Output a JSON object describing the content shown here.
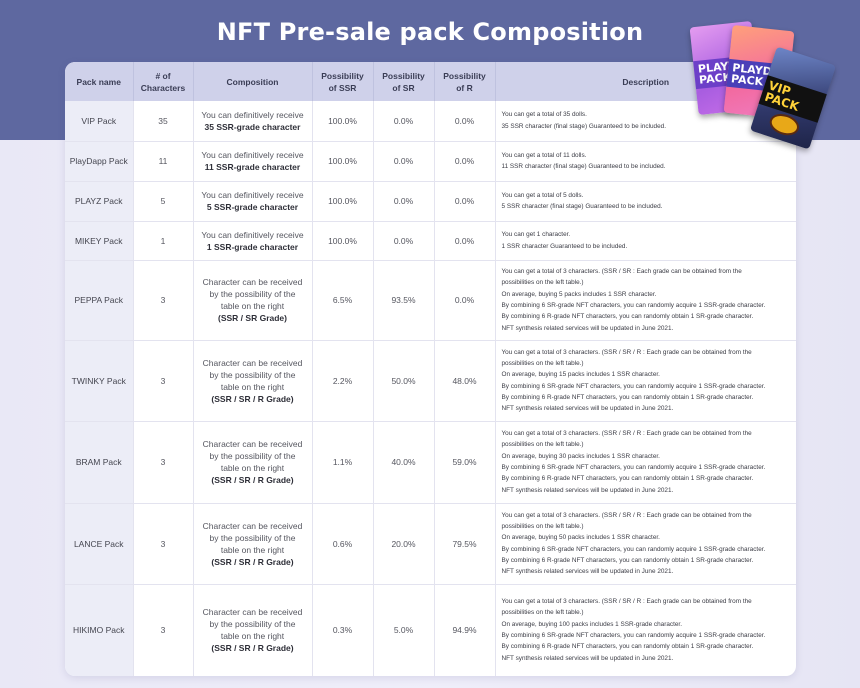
{
  "page": {
    "title": "NFT Pre-sale pack Composition"
  },
  "colors": {
    "banner": "#5e68a0",
    "header_bg": "#cfd1ea",
    "name_col_bg": "#ecedf7",
    "background": "#ecebf8"
  },
  "illustration": {
    "packs": [
      {
        "label_line1": "PLAYZ",
        "label_line2": "PACK"
      },
      {
        "label_line1": "PLAYDA",
        "label_line2": "PACK"
      },
      {
        "label_line1": "VIP",
        "label_line2": "PACK"
      }
    ]
  },
  "table": {
    "headers": {
      "pack_name": "Pack name",
      "num_chars_1": "# of",
      "num_chars_2": "Characters",
      "composition": "Composition",
      "ssr_1": "Possibility",
      "ssr_2": "of SSR",
      "sr_1": "Possibility",
      "sr_2": "of SR",
      "r_1": "Possibility",
      "r_2": "of R",
      "description": "Description"
    },
    "rows": [
      {
        "name": "VIP Pack",
        "count": "35",
        "comp_line1": "You can definitively receive",
        "comp_bold": "35 SSR-grade character",
        "ssr": "100.0%",
        "sr": "0.0%",
        "r": "0.0%",
        "desc": [
          "You can get a total of 35 dolls.",
          "35 SSR character (final stage) Guaranteed to be  included."
        ]
      },
      {
        "name": "PlayDapp Pack",
        "count": "11",
        "comp_line1": "You can definitively receive",
        "comp_bold": "11 SSR-grade character",
        "ssr": "100.0%",
        "sr": "0.0%",
        "r": "0.0%",
        "desc": [
          "You can get a total of 11 dolls.",
          "11 SSR character (final stage) Guaranteed to be  included."
        ]
      },
      {
        "name": "PLAYZ Pack",
        "count": "5",
        "comp_line1": "You can definitively receive",
        "comp_bold": "5 SSR-grade character",
        "ssr": "100.0%",
        "sr": "0.0%",
        "r": "0.0%",
        "desc": [
          "You can get a total of 5 dolls.",
          "5 SSR character (final stage) Guaranteed to be  included."
        ]
      },
      {
        "name": "MIKEY Pack",
        "count": "1",
        "comp_line1": "You can definitively receive",
        "comp_bold": "1 SSR-grade character",
        "ssr": "100.0%",
        "sr": "0.0%",
        "r": "0.0%",
        "desc": [
          "You can get 1 character.",
          "1 SSR character Guaranteed to be included."
        ]
      },
      {
        "name": "PEPPA Pack",
        "count": "3",
        "comp_line1": "Character can be received by the possibility of the table on the right",
        "comp_bold": "(SSR / SR Grade)",
        "ssr": "6.5%",
        "sr": "93.5%",
        "r": "0.0%",
        "desc": [
          "You can get a total of 3 characters. (SSR / SR : Each grade can be obtained from the",
          "possibilities on the left table.)",
          "On average, buying 5 packs includes 1 SSR character.",
          "By combining 6 SR-grade NFT characters, you can randomly acquire 1 SSR-grade character.",
          "By combining 6 R-grade NFT characters, you can randomly obtain 1 SR-grade character.",
          "NFT synthesis related services will be updated in June 2021."
        ]
      },
      {
        "name": "TWINKY Pack",
        "count": "3",
        "comp_line1": "Character can be received by the possibility of the table on the right",
        "comp_bold": "(SSR / SR / R Grade)",
        "ssr": "2.2%",
        "sr": "50.0%",
        "r": "48.0%",
        "desc": [
          "You can get a total of 3 characters. (SSR / SR / R : Each grade can be obtained from the",
          "possibilities on the left table.)",
          "On average, buying 15 packs includes 1 SSR character.",
          "By combining 6 SR-grade NFT characters, you can randomly acquire 1 SSR-grade character.",
          "By combining 6 R-grade NFT characters, you can randomly obtain 1 SR-grade character.",
          "NFT synthesis related services will be updated in June 2021."
        ]
      },
      {
        "name": "BRAM Pack",
        "count": "3",
        "comp_line1": "Character can be received by the possibility of the table on the right",
        "comp_bold": "(SSR / SR / R Grade)",
        "ssr": "1.1%",
        "sr": "40.0%",
        "r": "59.0%",
        "desc": [
          "You can get a total of 3 characters. (SSR / SR / R : Each grade can be obtained from the",
          "possibilities on the left table.)",
          "On average, buying 30 packs includes 1 SSR character.",
          "By combining 6 SR-grade NFT characters, you can randomly acquire 1 SSR-grade character.",
          "By combining 6 R-grade NFT characters, you can randomly obtain 1 SR-grade character.",
          "NFT synthesis related services will be updated in June 2021."
        ]
      },
      {
        "name": "LANCE Pack",
        "count": "3",
        "comp_line1": "Character can be received by the possibility of the table on the right",
        "comp_bold": "(SSR / SR / R Grade)",
        "ssr": "0.6%",
        "sr": "20.0%",
        "r": "79.5%",
        "desc": [
          "You can get a total of 3 characters. (SSR / SR / R : Each grade can be obtained from the",
          "possibilities on the left table.)",
          "On average, buying 50 packs includes 1 SSR character.",
          "By combining 6 SR-grade NFT characters, you can randomly acquire 1 SSR-grade character.",
          "By combining 6 R-grade NFT characters, you can randomly obtain 1 SR-grade character.",
          "NFT synthesis related services will be updated in June 2021."
        ]
      },
      {
        "name": "HIKIMO Pack",
        "count": "3",
        "comp_line1": "Character can be received by the possibility of the table on the right",
        "comp_bold": "(SSR / SR / R Grade)",
        "ssr": "0.3%",
        "sr": "5.0%",
        "r": "94.9%",
        "desc": [
          "You can get a total of 3 characters. (SSR / SR / R : Each grade can be obtained from the",
          "possibilities on the left table.)",
          "On average, buying 100 packs includes 1 SSR-grade character.",
          "By combining 6 SR-grade NFT characters, you can randomly acquire 1 SSR-grade character.",
          "By combining 6 R-grade NFT characters, you can randomly obtain 1 SR-grade character.",
          "NFT synthesis related services will be updated in June 2021."
        ]
      }
    ]
  }
}
